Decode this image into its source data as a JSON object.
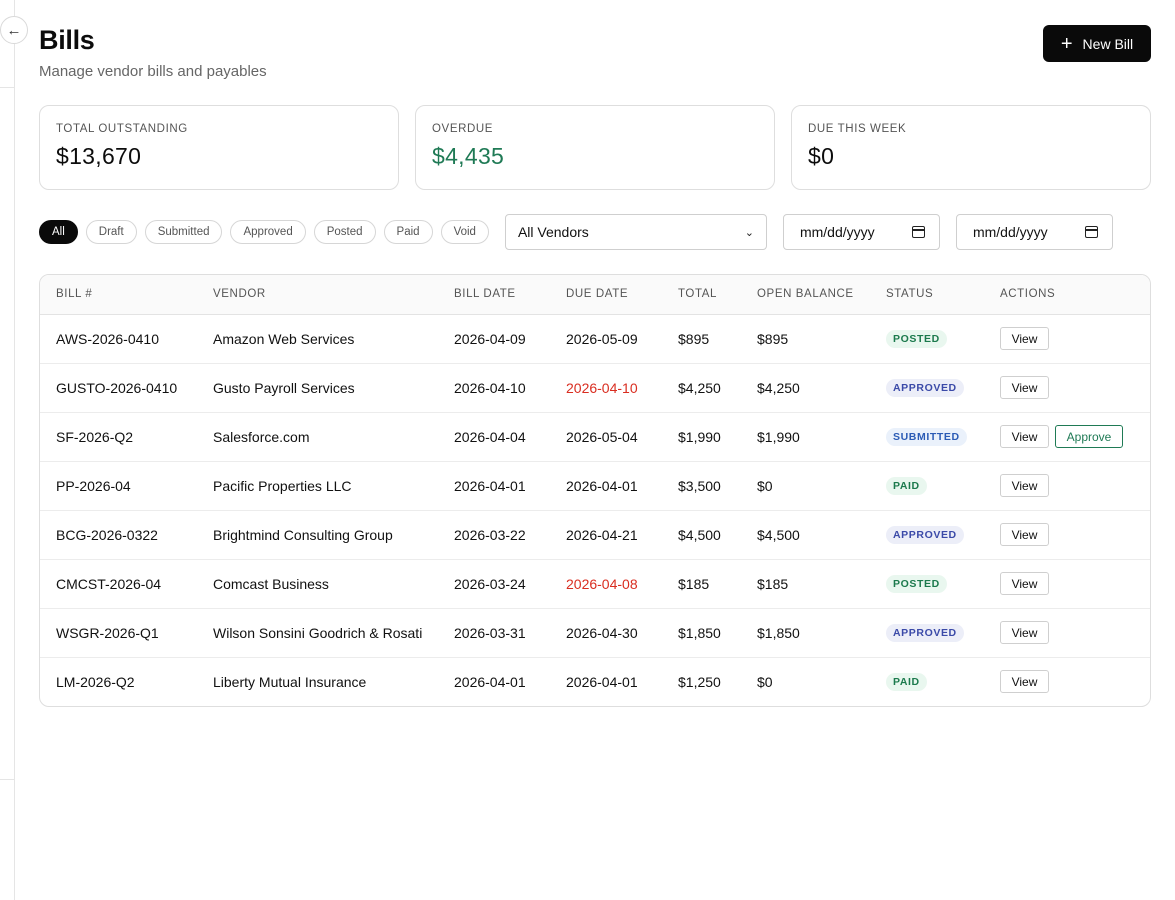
{
  "header": {
    "title": "Bills",
    "subtitle": "Manage vendor bills and payables",
    "new_bill_label": "New Bill",
    "collapse_icon": "←"
  },
  "stats": [
    {
      "label": "TOTAL OUTSTANDING",
      "value": "$13,670"
    },
    {
      "label": "OVERDUE",
      "value": "$4,435",
      "color": "#1f7a55"
    },
    {
      "label": "DUE THIS WEEK",
      "value": "$0"
    }
  ],
  "filters": {
    "status_chips": [
      "All",
      "Draft",
      "Submitted",
      "Approved",
      "Posted",
      "Paid",
      "Void"
    ],
    "active_chip": "All",
    "vendor_select": "All Vendors",
    "date_from_placeholder": "mm/dd/yyyy",
    "date_to_placeholder": "mm/dd/yyyy"
  },
  "table": {
    "columns": [
      "BILL #",
      "VENDOR",
      "BILL DATE",
      "DUE DATE",
      "TOTAL",
      "OPEN BALANCE",
      "STATUS",
      "ACTIONS"
    ],
    "view_label": "View",
    "approve_label": "Approve",
    "rows": [
      {
        "bill": "AWS-2026-0410",
        "vendor": "Amazon Web Services",
        "bill_date": "2026-04-09",
        "due_date": "2026-05-09",
        "total": "$895",
        "open_balance": "$895",
        "status": "POSTED"
      },
      {
        "bill": "GUSTO-2026-0410",
        "vendor": "Gusto Payroll Services",
        "bill_date": "2026-04-10",
        "due_date": "2026-04-10",
        "total": "$4,250",
        "open_balance": "$4,250",
        "status": "APPROVED"
      },
      {
        "bill": "SF-2026-Q2",
        "vendor": "Salesforce.com",
        "bill_date": "2026-04-04",
        "due_date": "2026-05-04",
        "total": "$1,990",
        "open_balance": "$1,990",
        "status": "SUBMITTED"
      },
      {
        "bill": "PP-2026-04",
        "vendor": "Pacific Properties LLC",
        "bill_date": "2026-04-01",
        "due_date": "2026-04-01",
        "total": "$3,500",
        "open_balance": "$0",
        "status": "PAID"
      },
      {
        "bill": "BCG-2026-0322",
        "vendor": "Brightmind Consulting Group",
        "bill_date": "2026-03-22",
        "due_date": "2026-04-21",
        "total": "$4,500",
        "open_balance": "$4,500",
        "status": "APPROVED"
      },
      {
        "bill": "CMCST-2026-04",
        "vendor": "Comcast Business",
        "bill_date": "2026-03-24",
        "due_date": "2026-04-08",
        "total": "$185",
        "open_balance": "$185",
        "status": "POSTED"
      },
      {
        "bill": "WSGR-2026-Q1",
        "vendor": "Wilson Sonsini Goodrich & Rosati",
        "bill_date": "2026-03-31",
        "due_date": "2026-04-30",
        "total": "$1,850",
        "open_balance": "$1,850",
        "status": "APPROVED"
      },
      {
        "bill": "LM-2026-Q2",
        "vendor": "Liberty Mutual Insurance",
        "bill_date": "2026-04-01",
        "due_date": "2026-04-01",
        "total": "$1,250",
        "open_balance": "$0",
        "status": "PAID"
      }
    ]
  },
  "colors": {
    "overdue_text": "#d92d20",
    "accent_green": "#1f7a55"
  }
}
